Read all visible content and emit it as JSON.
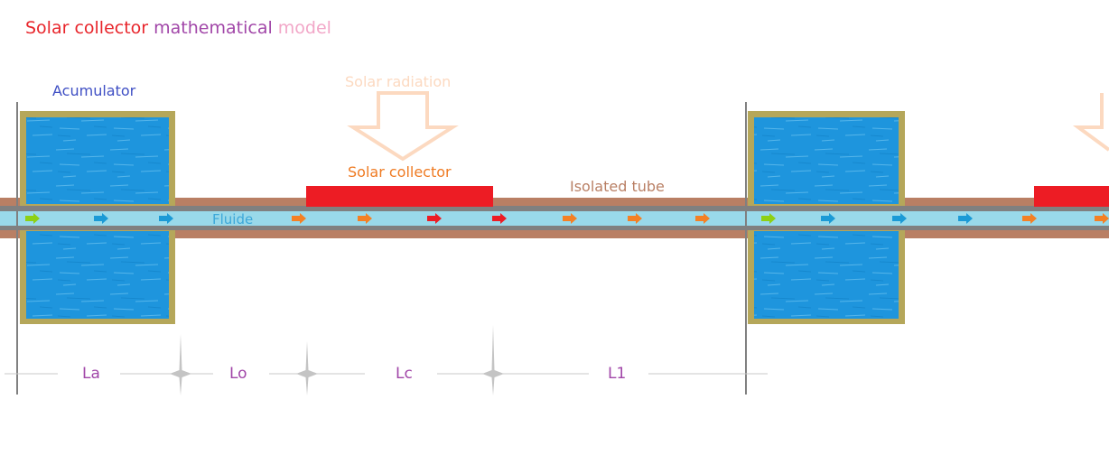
{
  "title": {
    "word1": "Solar collector",
    "word2": "mathematical",
    "word3": "model"
  },
  "labels": {
    "accumulator": "Acumulator",
    "solar_radiation": "Solar radiation",
    "solar_collector": "Solar collector",
    "isolated_tube": "Isolated tube",
    "fluid": "Fluide"
  },
  "dimensions": {
    "la": "La",
    "lo": "Lo",
    "lc": "Lc",
    "l1": "L1"
  },
  "colors": {
    "title_red": "#e8252b",
    "title_purple": "#a146a8",
    "title_pink": "#f2a7c8",
    "accumulator_label": "#3f4fc4",
    "radiation": "#fcd9c0",
    "collector_label": "#ef7b23",
    "collector": "#ed1c24",
    "tube": "#b97f64",
    "tube_label": "#b97f64",
    "fluid": "#99d9ea",
    "fluid_label": "#3da8d9",
    "tank_frame": "#b5a75a",
    "water": "#1e95dd",
    "dimension_text": "#a146a8",
    "arrow_green": "#8ed014",
    "arrow_blue": "#1b9ad6",
    "arrow_orange": "#f48024",
    "arrow_red": "#ed1c24"
  },
  "flow_arrows": [
    "green",
    "blue",
    "blue",
    "orange",
    "orange",
    "red",
    "red",
    "orange",
    "orange",
    "orange",
    "green",
    "blue",
    "blue",
    "blue",
    "orange",
    "orange"
  ]
}
